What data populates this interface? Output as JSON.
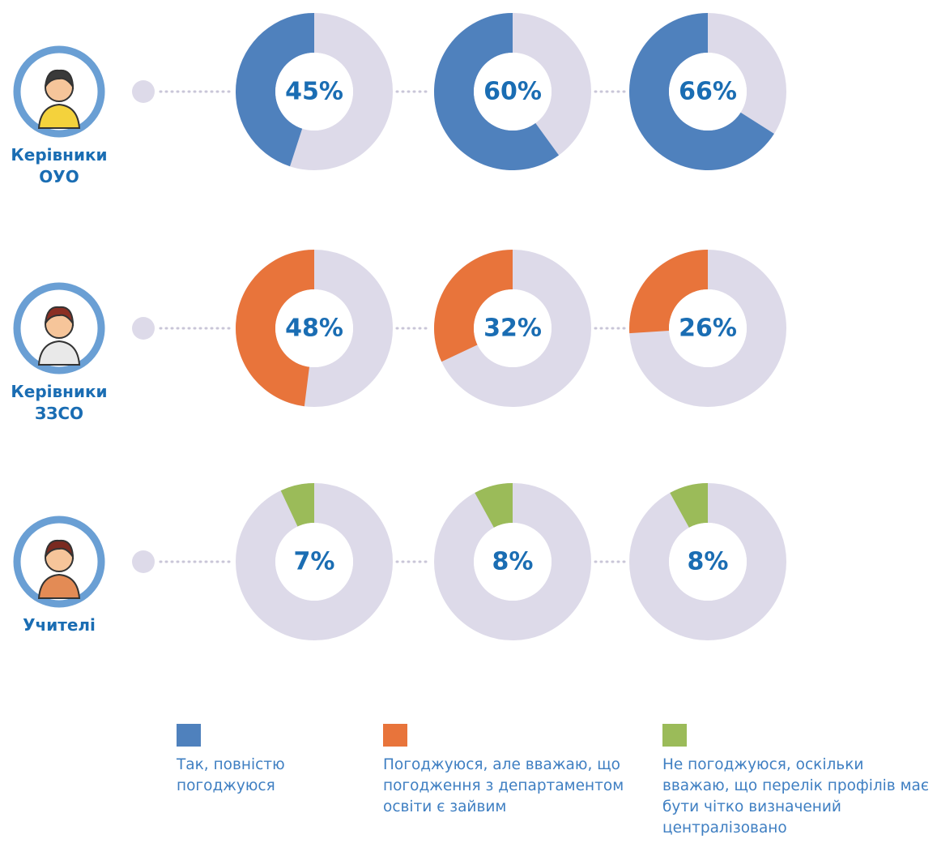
{
  "chart_data": {
    "type": "donut",
    "range": [
      0,
      100
    ],
    "track_color": "#dddae9",
    "series": [
      {
        "name": "Керівники ОУО",
        "color": "#4f81bd",
        "values": [
          45,
          60,
          66
        ],
        "value_labels": [
          "45%",
          "60%",
          "66%"
        ]
      },
      {
        "name": "Керівники ЗЗСО",
        "color": "#e8743b",
        "values": [
          48,
          32,
          26
        ],
        "value_labels": [
          "48%",
          "32%",
          "26%"
        ]
      },
      {
        "name": "Учителі",
        "color": "#9bbb59",
        "values": [
          7,
          8,
          8
        ],
        "value_labels": [
          "7%",
          "8%",
          "8%"
        ]
      }
    ],
    "legend": [
      "Так, повністю погоджуюся",
      "Погоджуюся, але вважаю, що погодження з департаментом освіти є зайвим",
      "Не погоджуюся, оскільки вважаю, що перелік профілів має бути чітко визначений централізовано"
    ]
  }
}
